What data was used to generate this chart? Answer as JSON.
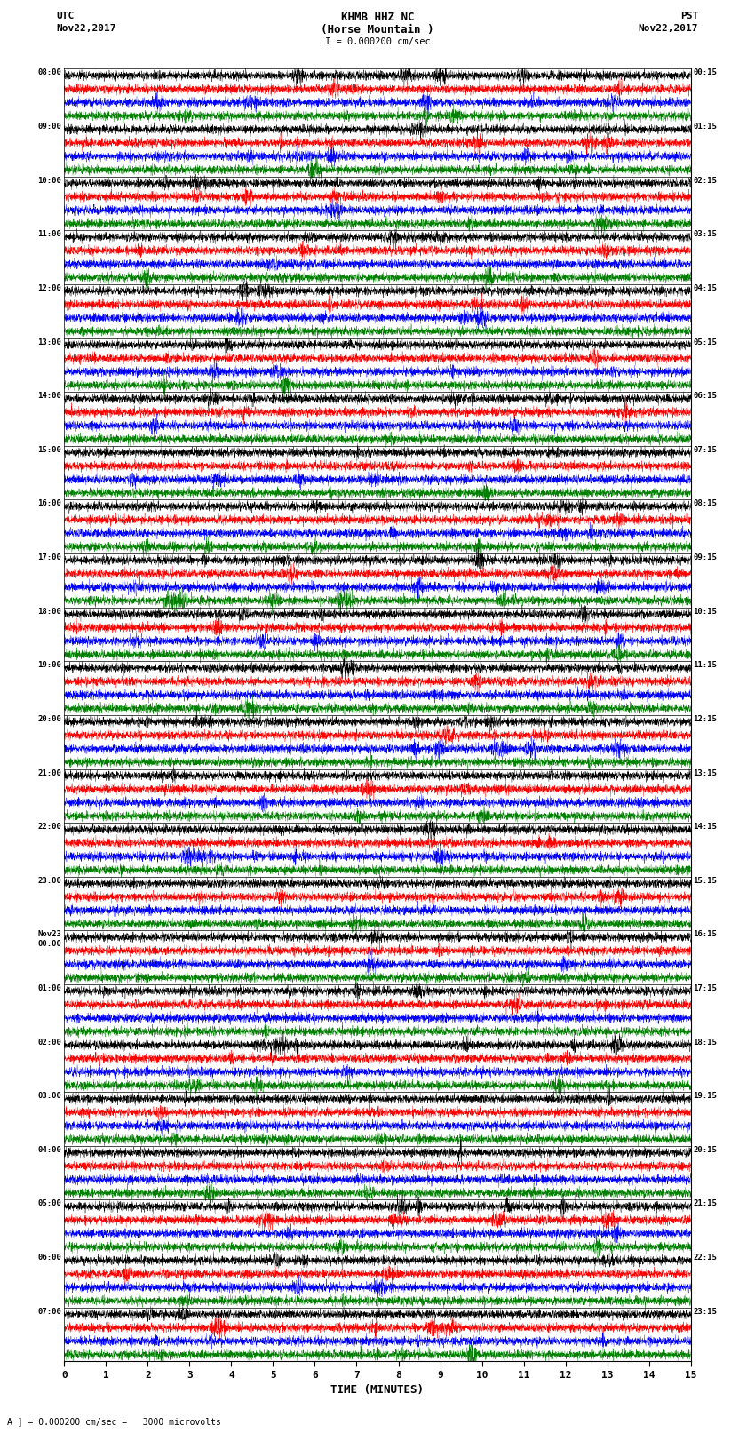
{
  "title_line1": "KHMB HHZ NC",
  "title_line2": "(Horse Mountain )",
  "scale_label": "I = 0.000200 cm/sec",
  "utc_label": "UTC\nNov22,2017",
  "pst_label": "PST\nNov22,2017",
  "xlabel": "TIME (MINUTES)",
  "bottom_note": "A ] = 0.000200 cm/sec =   3000 microvolts",
  "left_times": [
    "08:00",
    "09:00",
    "10:00",
    "11:00",
    "12:00",
    "13:00",
    "14:00",
    "15:00",
    "16:00",
    "17:00",
    "18:00",
    "19:00",
    "20:00",
    "21:00",
    "22:00",
    "23:00",
    "Nov23\n00:00",
    "01:00",
    "02:00",
    "03:00",
    "04:00",
    "05:00",
    "06:00",
    "07:00"
  ],
  "right_times": [
    "00:15",
    "01:15",
    "02:15",
    "03:15",
    "04:15",
    "05:15",
    "06:15",
    "07:15",
    "08:15",
    "09:15",
    "10:15",
    "11:15",
    "12:15",
    "13:15",
    "14:15",
    "15:15",
    "16:15",
    "17:15",
    "18:15",
    "19:15",
    "20:15",
    "21:15",
    "22:15",
    "23:15"
  ],
  "n_rows": 24,
  "n_traces_per_row": 4,
  "minutes_per_row": 15,
  "colors": [
    "black",
    "red",
    "blue",
    "green"
  ],
  "bg_color": "white",
  "fig_width": 8.5,
  "fig_height": 16.13,
  "dpi": 100,
  "xticks": [
    0,
    1,
    2,
    3,
    4,
    5,
    6,
    7,
    8,
    9,
    10,
    11,
    12,
    13,
    14,
    15
  ],
  "amplitude": 0.38,
  "noise_seed": 42
}
